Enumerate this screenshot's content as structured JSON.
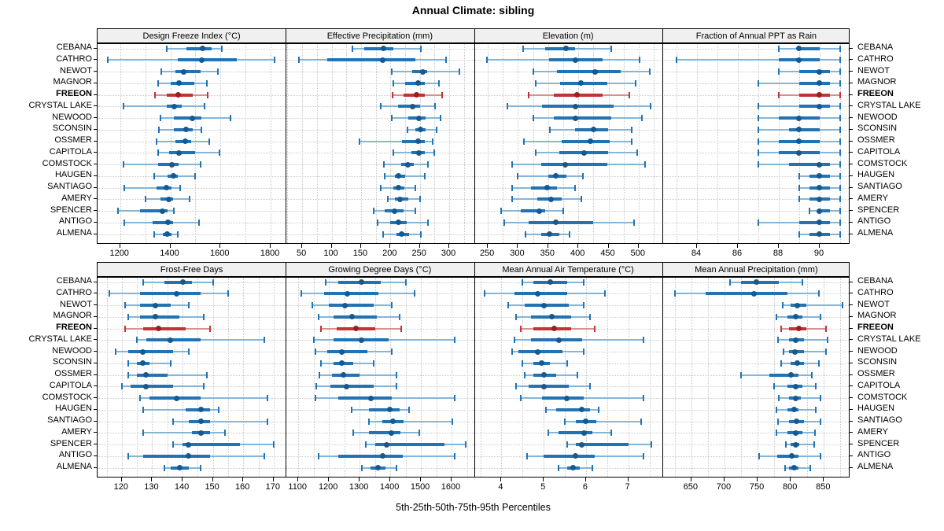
{
  "title": "Annual Climate: sibling",
  "caption": "5th-25th-50th-75th-95th Percentiles",
  "stations": [
    "CEBANA",
    "CATHRO",
    "NEWOT",
    "MAGNOR",
    "FREEON",
    "CRYSTAL LAKE",
    "NEWOOD",
    "SCONSIN",
    "OSSMER",
    "CAPITOLA",
    "COMSTOCK",
    "HAUGEN",
    "SANTIAGO",
    "AMERY",
    "SPENCER",
    "ANTIGO",
    "ALMENA"
  ],
  "highlight_station": "FREEON",
  "percentile_labels": [
    "5th",
    "25th",
    "50th",
    "75th",
    "95th"
  ],
  "colors": {
    "blue": "#2273b4",
    "blue_whisker": "#85b6da",
    "blue_dot": "#15598f",
    "red": "#c13335",
    "red_whisker": "#d8908e",
    "red_dot": "#9d1d20",
    "strip_bg": "#f0f0f0",
    "grid": "#c8c8c8",
    "border": "#000000"
  },
  "chart_data": [
    {
      "type": "interval",
      "title": "Design Freeze Index (°C)",
      "grid_row": 1,
      "xlim": [
        1110,
        1860
      ],
      "ticks": [
        1200,
        1400,
        1600,
        1800
      ],
      "grid_step": 100,
      "percentiles": [
        [
          1385,
          1465,
          1530,
          1565,
          1605
        ],
        [
          1150,
          1430,
          1525,
          1665,
          1815
        ],
        [
          1365,
          1420,
          1452,
          1520,
          1590
        ],
        [
          1350,
          1400,
          1435,
          1495,
          1545
        ],
        [
          1340,
          1385,
          1430,
          1490,
          1550
        ],
        [
          1215,
          1385,
          1415,
          1445,
          1535
        ],
        [
          1360,
          1415,
          1488,
          1525,
          1640
        ],
        [
          1355,
          1415,
          1462,
          1490,
          1525
        ],
        [
          1345,
          1420,
          1460,
          1482,
          1555
        ],
        [
          1350,
          1395,
          1435,
          1500,
          1595
        ],
        [
          1215,
          1350,
          1405,
          1432,
          1520
        ],
        [
          1335,
          1390,
          1412,
          1430,
          1498
        ],
        [
          1218,
          1345,
          1385,
          1405,
          1440
        ],
        [
          1300,
          1360,
          1395,
          1412,
          1478
        ],
        [
          1190,
          1280,
          1368,
          1390,
          1415
        ],
        [
          1218,
          1330,
          1390,
          1410,
          1515
        ],
        [
          1335,
          1370,
          1388,
          1405,
          1430
        ]
      ]
    },
    {
      "type": "interval",
      "title": "Effective Precipitation (mm)",
      "grid_row": 1,
      "xlim": [
        22,
        342
      ],
      "ticks": [
        50,
        100,
        150,
        200,
        250,
        300
      ],
      "grid_step": 25,
      "percentiles": [
        [
          135,
          155,
          188,
          205,
          252
        ],
        [
          45,
          93,
          187,
          243,
          295
        ],
        [
          202,
          237,
          255,
          263,
          317
        ],
        [
          205,
          225,
          247,
          258,
          283
        ],
        [
          203,
          222,
          245,
          258,
          288
        ],
        [
          183,
          213,
          238,
          250,
          276
        ],
        [
          202,
          230,
          249,
          260,
          285
        ],
        [
          229,
          243,
          251,
          260,
          278
        ],
        [
          147,
          220,
          247,
          258,
          272
        ],
        [
          205,
          235,
          248,
          258,
          275
        ],
        [
          189,
          218,
          230,
          240,
          264
        ],
        [
          190,
          207,
          214,
          225,
          258
        ],
        [
          183,
          205,
          214,
          224,
          243
        ],
        [
          195,
          208,
          216,
          230,
          251
        ],
        [
          172,
          190,
          207,
          222,
          242
        ],
        [
          178,
          200,
          213,
          227,
          264
        ],
        [
          188,
          210,
          219,
          232,
          252
        ]
      ]
    },
    {
      "type": "interval",
      "title": "Elevation (m)",
      "grid_row": 1,
      "xlim": [
        227,
        539
      ],
      "ticks": [
        250,
        300,
        350,
        400,
        450,
        500
      ],
      "grid_step": 25,
      "percentiles": [
        [
          308,
          345,
          380,
          395,
          455
        ],
        [
          248,
          352,
          395,
          440,
          502
        ],
        [
          325,
          365,
          428,
          470,
          518
        ],
        [
          330,
          370,
          405,
          448,
          495
        ],
        [
          318,
          360,
          398,
          440,
          485
        ],
        [
          283,
          340,
          395,
          458,
          520
        ],
        [
          325,
          360,
          395,
          455,
          505
        ],
        [
          353,
          395,
          425,
          450,
          488
        ],
        [
          310,
          372,
          420,
          452,
          488
        ],
        [
          330,
          368,
          410,
          450,
          498
        ],
        [
          290,
          338,
          378,
          448,
          510
        ],
        [
          300,
          350,
          363,
          380,
          408
        ],
        [
          290,
          322,
          348,
          365,
          395
        ],
        [
          290,
          332,
          355,
          372,
          405
        ],
        [
          272,
          305,
          335,
          345,
          375
        ],
        [
          277,
          318,
          363,
          425,
          493
        ],
        [
          313,
          338,
          352,
          368,
          385
        ]
      ]
    },
    {
      "type": "interval",
      "title": "Fraction of Annual PPT as Rain",
      "grid_row": 1,
      "xlim": [
        82.3,
        91.5
      ],
      "ticks": [
        84,
        86,
        88,
        90
      ],
      "grid_step": 1,
      "percentiles": [
        [
          88,
          89,
          89,
          90,
          91
        ],
        [
          83,
          88,
          89,
          90,
          91
        ],
        [
          88,
          89,
          90,
          90.5,
          91
        ],
        [
          87,
          89,
          90,
          90.5,
          91
        ],
        [
          88,
          89,
          90,
          90.5,
          91
        ],
        [
          87,
          89,
          90,
          90.5,
          91
        ],
        [
          87,
          88,
          89,
          90,
          91
        ],
        [
          87,
          88.5,
          89,
          90,
          91
        ],
        [
          87,
          88,
          89,
          90,
          91
        ],
        [
          87,
          88,
          89,
          90,
          91
        ],
        [
          87,
          88.5,
          90,
          90.5,
          91
        ],
        [
          89,
          89.5,
          90,
          90.5,
          91
        ],
        [
          89,
          89.5,
          90,
          90.5,
          91
        ],
        [
          89,
          89.5,
          90,
          90.5,
          91
        ],
        [
          89.5,
          90,
          90,
          90.5,
          91
        ],
        [
          87,
          89,
          90,
          90.5,
          91
        ],
        [
          89,
          89.5,
          90,
          90.5,
          91
        ]
      ]
    },
    {
      "type": "interval",
      "title": "Frost-Free Days",
      "grid_row": 2,
      "xlim": [
        112,
        174
      ],
      "ticks": [
        120,
        130,
        140,
        150,
        160,
        170
      ],
      "grid_step": 5,
      "percentiles": [
        [
          127,
          134,
          140,
          143,
          150
        ],
        [
          116,
          126,
          138,
          146,
          155
        ],
        [
          121,
          126,
          131,
          136,
          142
        ],
        [
          122,
          126,
          131,
          139,
          147
        ],
        [
          121,
          127,
          132,
          141,
          149
        ],
        [
          125,
          128,
          136,
          146,
          167
        ],
        [
          118,
          122,
          127,
          137,
          142
        ],
        [
          122,
          125,
          127,
          129,
          136
        ],
        [
          122,
          125,
          128,
          135,
          148
        ],
        [
          120,
          123,
          128,
          137,
          147
        ],
        [
          126,
          129,
          138,
          146,
          168
        ],
        [
          127,
          141,
          146,
          149,
          152
        ],
        [
          137,
          142,
          146,
          149,
          168
        ],
        [
          127,
          143,
          146,
          149,
          154
        ],
        [
          137,
          140,
          142,
          159,
          170
        ],
        [
          122,
          127,
          142,
          149,
          167
        ],
        [
          134,
          136,
          139,
          142,
          146
        ]
      ]
    },
    {
      "type": "interval",
      "title": "Growing Degree Days (°C)",
      "grid_row": 2,
      "xlim": [
        1059,
        1673
      ],
      "ticks": [
        1100,
        1200,
        1300,
        1400,
        1500,
        1600
      ],
      "grid_step": 50,
      "percentiles": [
        [
          1190,
          1230,
          1305,
          1370,
          1450
        ],
        [
          1110,
          1185,
          1260,
          1360,
          1480
        ],
        [
          1145,
          1200,
          1253,
          1345,
          1405
        ],
        [
          1165,
          1215,
          1275,
          1355,
          1430
        ],
        [
          1175,
          1225,
          1288,
          1350,
          1435
        ],
        [
          1150,
          1215,
          1305,
          1395,
          1610
        ],
        [
          1155,
          1195,
          1242,
          1325,
          1405
        ],
        [
          1175,
          1215,
          1243,
          1280,
          1345
        ],
        [
          1168,
          1210,
          1247,
          1300,
          1420
        ],
        [
          1158,
          1205,
          1257,
          1345,
          1420
        ],
        [
          1155,
          1230,
          1338,
          1405,
          1610
        ],
        [
          1275,
          1330,
          1398,
          1430,
          1462
        ],
        [
          1330,
          1375,
          1408,
          1443,
          1603
        ],
        [
          1280,
          1330,
          1403,
          1432,
          1495
        ],
        [
          1320,
          1350,
          1388,
          1578,
          1645
        ],
        [
          1165,
          1230,
          1375,
          1440,
          1610
        ],
        [
          1308,
          1335,
          1360,
          1385,
          1420
        ]
      ]
    },
    {
      "type": "interval",
      "title": "Mean Annual Air Temperature (°C)",
      "grid_row": 2,
      "xlim": [
        3.35,
        7.8
      ],
      "ticks": [
        4,
        5,
        6,
        7
      ],
      "grid_step": 0.5,
      "percentiles": [
        [
          4.5,
          4.75,
          5.15,
          5.55,
          5.95
        ],
        [
          3.6,
          4.3,
          4.85,
          5.55,
          6.45
        ],
        [
          4.15,
          4.55,
          5.0,
          5.6,
          5.95
        ],
        [
          4.35,
          4.7,
          5.2,
          5.65,
          6.1
        ],
        [
          4.45,
          4.75,
          5.25,
          5.65,
          6.2
        ],
        [
          4.3,
          4.7,
          5.35,
          5.9,
          7.35
        ],
        [
          4.25,
          4.4,
          4.85,
          5.45,
          5.95
        ],
        [
          4.5,
          4.75,
          4.95,
          5.15,
          5.55
        ],
        [
          4.55,
          4.75,
          5.0,
          5.3,
          5.8
        ],
        [
          4.35,
          4.65,
          5.0,
          5.6,
          6.1
        ],
        [
          4.45,
          4.95,
          5.55,
          5.95,
          7.35
        ],
        [
          5.05,
          5.3,
          5.9,
          6.1,
          6.3
        ],
        [
          5.5,
          5.75,
          6.0,
          6.25,
          7.3
        ],
        [
          5.1,
          5.35,
          5.95,
          6.15,
          6.6
        ],
        [
          5.55,
          5.75,
          5.9,
          7.0,
          7.55
        ],
        [
          4.6,
          5.0,
          5.75,
          6.2,
          7.35
        ],
        [
          5.35,
          5.55,
          5.7,
          5.85,
          6.15
        ]
      ]
    },
    {
      "type": "interval",
      "title": "Mean Annual Precipitation (mm)",
      "grid_row": 2,
      "xlim": [
        606,
        890
      ],
      "ticks": [
        650,
        700,
        750,
        800,
        850
      ],
      "grid_step": 25,
      "percentiles": [
        [
          708,
          725,
          748,
          782,
          818
        ],
        [
          625,
          672,
          745,
          795,
          843
        ],
        [
          788,
          800,
          810,
          823,
          878
        ],
        [
          778,
          795,
          808,
          818,
          845
        ],
        [
          786,
          798,
          812,
          824,
          853
        ],
        [
          781,
          797,
          808,
          820,
          855
        ],
        [
          789,
          798,
          806,
          820,
          853
        ],
        [
          785,
          800,
          810,
          820,
          842
        ],
        [
          725,
          768,
          800,
          812,
          832
        ],
        [
          775,
          795,
          807,
          818,
          838
        ],
        [
          782,
          797,
          807,
          815,
          845
        ],
        [
          778,
          795,
          805,
          812,
          838
        ],
        [
          781,
          797,
          809,
          820,
          845
        ],
        [
          779,
          795,
          808,
          818,
          837
        ],
        [
          793,
          800,
          807,
          813,
          835
        ],
        [
          752,
          780,
          802,
          812,
          845
        ],
        [
          791,
          798,
          805,
          812,
          830
        ]
      ]
    }
  ]
}
